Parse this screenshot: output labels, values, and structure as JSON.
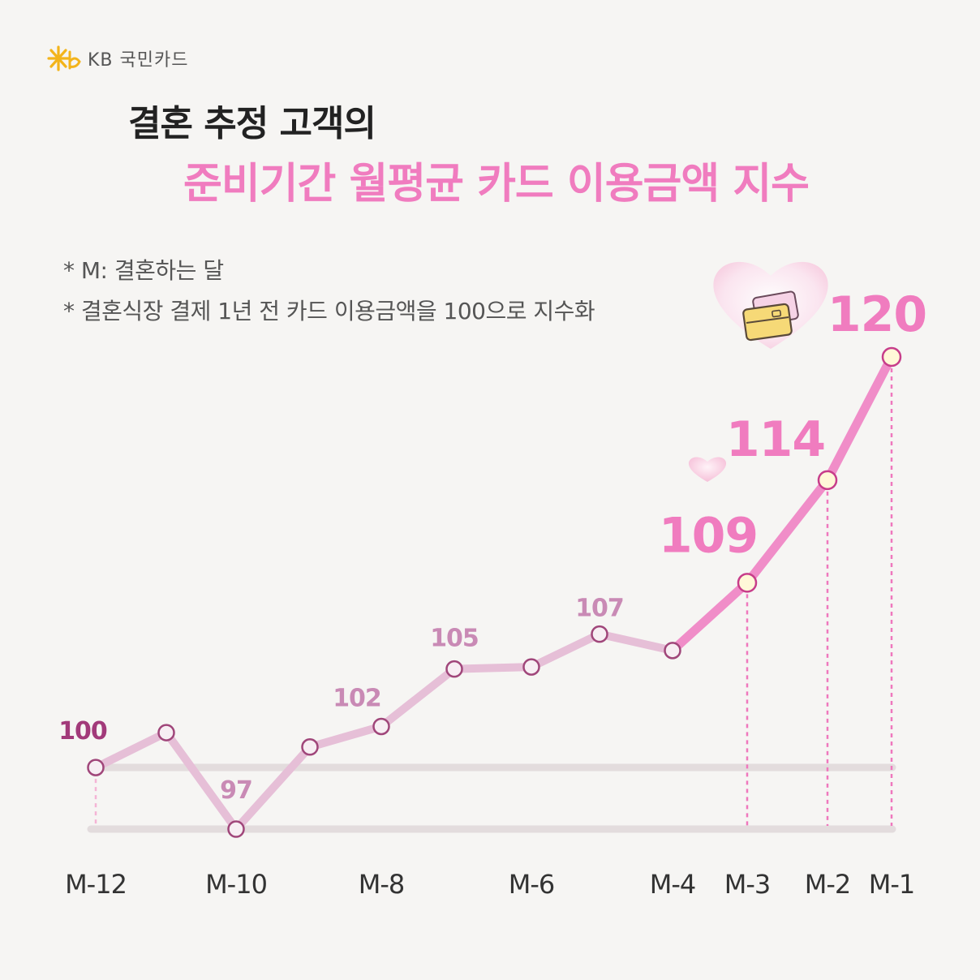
{
  "brand": {
    "logo_text": "KB 국민카드"
  },
  "header": {
    "title_line1": "결혼 추정 고객의",
    "title_line2": "준비기간 월평균 카드 이용금액 지수"
  },
  "notes": [
    "* M: 결혼하는 달",
    "* 결혼식장 결제 1년 전 카드 이용금액을 100으로 지수화"
  ],
  "colors": {
    "accent": "#f07cbf",
    "line_light": "#e6bfd7",
    "line_dark": "#f08dc8",
    "point_fill": "#fff8d8"
  },
  "chart_data": {
    "type": "line",
    "title": "준비기간 월평균 카드 이용금액 지수",
    "categories": [
      "M-12",
      "M-11",
      "M-10",
      "M-9",
      "M-8",
      "M-7",
      "M-6",
      "M-5",
      "M-4",
      "M-3",
      "M-2",
      "M-1"
    ],
    "tick_labels": [
      "M-12",
      "",
      "M-10",
      "",
      "M-8",
      "",
      "M-6",
      "",
      "M-4",
      "M-3",
      "M-2",
      "M-1"
    ],
    "values": [
      100,
      101.7,
      97,
      101,
      102,
      104.8,
      104.9,
      106.5,
      105.7,
      109,
      114,
      120
    ],
    "data_labels": [
      "100",
      "",
      "97",
      "",
      "102",
      "105",
      "",
      "107",
      "",
      "109",
      "114",
      "120"
    ],
    "ylim": [
      97,
      120
    ],
    "baseline": 100,
    "grid": false,
    "legend": "none"
  }
}
